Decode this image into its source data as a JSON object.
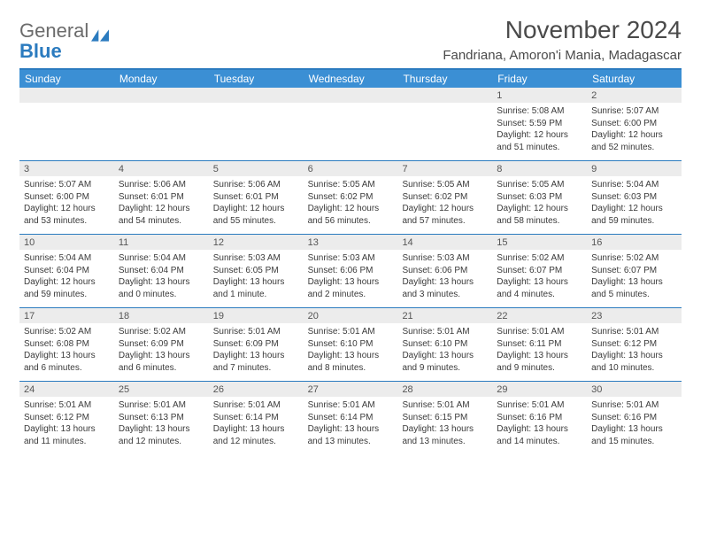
{
  "logo": {
    "word1": "General",
    "word2": "Blue"
  },
  "colors": {
    "header_bg": "#3b8fd4",
    "header_text": "#ffffff",
    "rule": "#2b7bbf",
    "daynum_bg": "#ececec",
    "body_text": "#3a3a3a",
    "title_text": "#4a4a4a",
    "logo_grey": "#6b6b6b",
    "logo_blue": "#2b7bbf",
    "page_bg": "#ffffff"
  },
  "title": "November 2024",
  "location": "Fandriana, Amoron'i Mania, Madagascar",
  "day_headers": [
    "Sunday",
    "Monday",
    "Tuesday",
    "Wednesday",
    "Thursday",
    "Friday",
    "Saturday"
  ],
  "weeks": [
    [
      {
        "n": "",
        "sunrise": "",
        "sunset": "",
        "dayA": "",
        "dayB": ""
      },
      {
        "n": "",
        "sunrise": "",
        "sunset": "",
        "dayA": "",
        "dayB": ""
      },
      {
        "n": "",
        "sunrise": "",
        "sunset": "",
        "dayA": "",
        "dayB": ""
      },
      {
        "n": "",
        "sunrise": "",
        "sunset": "",
        "dayA": "",
        "dayB": ""
      },
      {
        "n": "",
        "sunrise": "",
        "sunset": "",
        "dayA": "",
        "dayB": ""
      },
      {
        "n": "1",
        "sunrise": "Sunrise: 5:08 AM",
        "sunset": "Sunset: 5:59 PM",
        "dayA": "Daylight: 12 hours",
        "dayB": "and 51 minutes."
      },
      {
        "n": "2",
        "sunrise": "Sunrise: 5:07 AM",
        "sunset": "Sunset: 6:00 PM",
        "dayA": "Daylight: 12 hours",
        "dayB": "and 52 minutes."
      }
    ],
    [
      {
        "n": "3",
        "sunrise": "Sunrise: 5:07 AM",
        "sunset": "Sunset: 6:00 PM",
        "dayA": "Daylight: 12 hours",
        "dayB": "and 53 minutes."
      },
      {
        "n": "4",
        "sunrise": "Sunrise: 5:06 AM",
        "sunset": "Sunset: 6:01 PM",
        "dayA": "Daylight: 12 hours",
        "dayB": "and 54 minutes."
      },
      {
        "n": "5",
        "sunrise": "Sunrise: 5:06 AM",
        "sunset": "Sunset: 6:01 PM",
        "dayA": "Daylight: 12 hours",
        "dayB": "and 55 minutes."
      },
      {
        "n": "6",
        "sunrise": "Sunrise: 5:05 AM",
        "sunset": "Sunset: 6:02 PM",
        "dayA": "Daylight: 12 hours",
        "dayB": "and 56 minutes."
      },
      {
        "n": "7",
        "sunrise": "Sunrise: 5:05 AM",
        "sunset": "Sunset: 6:02 PM",
        "dayA": "Daylight: 12 hours",
        "dayB": "and 57 minutes."
      },
      {
        "n": "8",
        "sunrise": "Sunrise: 5:05 AM",
        "sunset": "Sunset: 6:03 PM",
        "dayA": "Daylight: 12 hours",
        "dayB": "and 58 minutes."
      },
      {
        "n": "9",
        "sunrise": "Sunrise: 5:04 AM",
        "sunset": "Sunset: 6:03 PM",
        "dayA": "Daylight: 12 hours",
        "dayB": "and 59 minutes."
      }
    ],
    [
      {
        "n": "10",
        "sunrise": "Sunrise: 5:04 AM",
        "sunset": "Sunset: 6:04 PM",
        "dayA": "Daylight: 12 hours",
        "dayB": "and 59 minutes."
      },
      {
        "n": "11",
        "sunrise": "Sunrise: 5:04 AM",
        "sunset": "Sunset: 6:04 PM",
        "dayA": "Daylight: 13 hours",
        "dayB": "and 0 minutes."
      },
      {
        "n": "12",
        "sunrise": "Sunrise: 5:03 AM",
        "sunset": "Sunset: 6:05 PM",
        "dayA": "Daylight: 13 hours",
        "dayB": "and 1 minute."
      },
      {
        "n": "13",
        "sunrise": "Sunrise: 5:03 AM",
        "sunset": "Sunset: 6:06 PM",
        "dayA": "Daylight: 13 hours",
        "dayB": "and 2 minutes."
      },
      {
        "n": "14",
        "sunrise": "Sunrise: 5:03 AM",
        "sunset": "Sunset: 6:06 PM",
        "dayA": "Daylight: 13 hours",
        "dayB": "and 3 minutes."
      },
      {
        "n": "15",
        "sunrise": "Sunrise: 5:02 AM",
        "sunset": "Sunset: 6:07 PM",
        "dayA": "Daylight: 13 hours",
        "dayB": "and 4 minutes."
      },
      {
        "n": "16",
        "sunrise": "Sunrise: 5:02 AM",
        "sunset": "Sunset: 6:07 PM",
        "dayA": "Daylight: 13 hours",
        "dayB": "and 5 minutes."
      }
    ],
    [
      {
        "n": "17",
        "sunrise": "Sunrise: 5:02 AM",
        "sunset": "Sunset: 6:08 PM",
        "dayA": "Daylight: 13 hours",
        "dayB": "and 6 minutes."
      },
      {
        "n": "18",
        "sunrise": "Sunrise: 5:02 AM",
        "sunset": "Sunset: 6:09 PM",
        "dayA": "Daylight: 13 hours",
        "dayB": "and 6 minutes."
      },
      {
        "n": "19",
        "sunrise": "Sunrise: 5:01 AM",
        "sunset": "Sunset: 6:09 PM",
        "dayA": "Daylight: 13 hours",
        "dayB": "and 7 minutes."
      },
      {
        "n": "20",
        "sunrise": "Sunrise: 5:01 AM",
        "sunset": "Sunset: 6:10 PM",
        "dayA": "Daylight: 13 hours",
        "dayB": "and 8 minutes."
      },
      {
        "n": "21",
        "sunrise": "Sunrise: 5:01 AM",
        "sunset": "Sunset: 6:10 PM",
        "dayA": "Daylight: 13 hours",
        "dayB": "and 9 minutes."
      },
      {
        "n": "22",
        "sunrise": "Sunrise: 5:01 AM",
        "sunset": "Sunset: 6:11 PM",
        "dayA": "Daylight: 13 hours",
        "dayB": "and 9 minutes."
      },
      {
        "n": "23",
        "sunrise": "Sunrise: 5:01 AM",
        "sunset": "Sunset: 6:12 PM",
        "dayA": "Daylight: 13 hours",
        "dayB": "and 10 minutes."
      }
    ],
    [
      {
        "n": "24",
        "sunrise": "Sunrise: 5:01 AM",
        "sunset": "Sunset: 6:12 PM",
        "dayA": "Daylight: 13 hours",
        "dayB": "and 11 minutes."
      },
      {
        "n": "25",
        "sunrise": "Sunrise: 5:01 AM",
        "sunset": "Sunset: 6:13 PM",
        "dayA": "Daylight: 13 hours",
        "dayB": "and 12 minutes."
      },
      {
        "n": "26",
        "sunrise": "Sunrise: 5:01 AM",
        "sunset": "Sunset: 6:14 PM",
        "dayA": "Daylight: 13 hours",
        "dayB": "and 12 minutes."
      },
      {
        "n": "27",
        "sunrise": "Sunrise: 5:01 AM",
        "sunset": "Sunset: 6:14 PM",
        "dayA": "Daylight: 13 hours",
        "dayB": "and 13 minutes."
      },
      {
        "n": "28",
        "sunrise": "Sunrise: 5:01 AM",
        "sunset": "Sunset: 6:15 PM",
        "dayA": "Daylight: 13 hours",
        "dayB": "and 13 minutes."
      },
      {
        "n": "29",
        "sunrise": "Sunrise: 5:01 AM",
        "sunset": "Sunset: 6:16 PM",
        "dayA": "Daylight: 13 hours",
        "dayB": "and 14 minutes."
      },
      {
        "n": "30",
        "sunrise": "Sunrise: 5:01 AM",
        "sunset": "Sunset: 6:16 PM",
        "dayA": "Daylight: 13 hours",
        "dayB": "and 15 minutes."
      }
    ]
  ]
}
